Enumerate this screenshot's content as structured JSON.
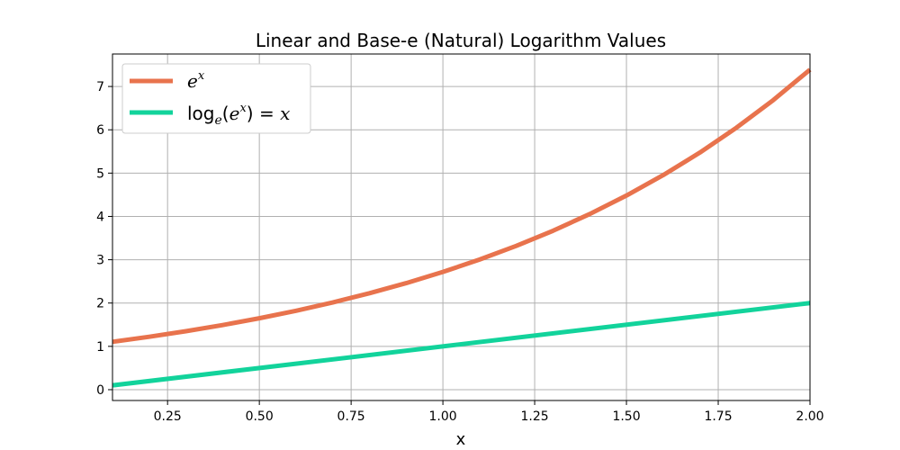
{
  "chart_data": {
    "type": "line",
    "title": "Linear and Base-e (Natural) Logarithm Values",
    "xlabel": "x",
    "ylabel": "",
    "xlim": [
      0.1,
      2.0
    ],
    "ylim": [
      -0.25,
      7.75
    ],
    "xticks": [
      0.25,
      0.5,
      0.75,
      1.0,
      1.25,
      1.5,
      1.75,
      2.0
    ],
    "xtick_labels": [
      "0.25",
      "0.50",
      "0.75",
      "1.00",
      "1.25",
      "1.50",
      "1.75",
      "2.00"
    ],
    "yticks": [
      0,
      1,
      2,
      3,
      4,
      5,
      6,
      7
    ],
    "ytick_labels": [
      "0",
      "1",
      "2",
      "3",
      "4",
      "5",
      "6",
      "7"
    ],
    "grid": true,
    "legend_position": "upper-left",
    "series": [
      {
        "name": "e^x",
        "color": "#e8734d",
        "x": [
          0.1,
          0.2,
          0.3,
          0.4,
          0.5,
          0.6,
          0.7,
          0.8,
          0.9,
          1.0,
          1.1,
          1.2,
          1.3,
          1.4,
          1.5,
          1.6,
          1.7,
          1.8,
          1.9,
          2.0
        ],
        "y": [
          1.105,
          1.221,
          1.35,
          1.492,
          1.649,
          1.822,
          2.014,
          2.226,
          2.46,
          2.718,
          3.004,
          3.32,
          3.669,
          4.055,
          4.482,
          4.953,
          5.474,
          6.05,
          6.686,
          7.389
        ]
      },
      {
        "name": "log_e(e^x) = x",
        "color": "#12d39b",
        "x": [
          0.1,
          2.0
        ],
        "y": [
          0.1,
          2.0
        ]
      }
    ]
  }
}
